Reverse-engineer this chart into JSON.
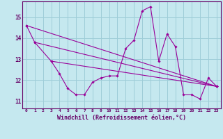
{
  "x": [
    0,
    1,
    2,
    3,
    4,
    5,
    6,
    7,
    8,
    9,
    10,
    11,
    12,
    13,
    14,
    15,
    16,
    17,
    18,
    19,
    20,
    21,
    22,
    23
  ],
  "line1": [
    14.6,
    13.8,
    null,
    12.9,
    12.3,
    11.6,
    11.3,
    11.3,
    11.9,
    12.1,
    12.2,
    12.2,
    13.5,
    13.9,
    15.3,
    15.5,
    12.9,
    14.2,
    13.6,
    11.3,
    11.3,
    11.1,
    12.1,
    11.7
  ],
  "line2_x": [
    0,
    23
  ],
  "line2_y": [
    14.6,
    11.7
  ],
  "line3_x": [
    1,
    23
  ],
  "line3_y": [
    13.8,
    11.7
  ],
  "line4_x": [
    3,
    23
  ],
  "line4_y": [
    12.9,
    11.7
  ],
  "background_color": "#c5e8ef",
  "grid_color": "#9ecdd8",
  "line_color": "#990099",
  "xlabel": "Windchill (Refroidissement éolien,°C)",
  "ylim": [
    10.65,
    15.75
  ],
  "xlim": [
    -0.5,
    23.5
  ],
  "yticks": [
    11,
    12,
    13,
    14,
    15
  ],
  "xticks": [
    0,
    1,
    2,
    3,
    4,
    5,
    6,
    7,
    8,
    9,
    10,
    11,
    12,
    13,
    14,
    15,
    16,
    17,
    18,
    19,
    20,
    21,
    22,
    23
  ]
}
